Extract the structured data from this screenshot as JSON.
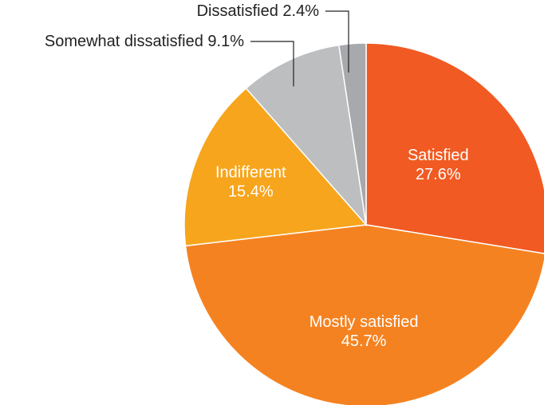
{
  "chart_data": {
    "type": "pie",
    "title": "",
    "slices": [
      {
        "label": "Satisfied",
        "value": 27.6,
        "value_label": "27.6%",
        "color": "#f15a22",
        "label_placement": "inside"
      },
      {
        "label": "Mostly satisfied",
        "value": 45.7,
        "value_label": "45.7%",
        "color": "#f58220",
        "label_placement": "inside"
      },
      {
        "label": "Indifferent",
        "value": 15.4,
        "value_label": "15.4%",
        "color": "#f7a51c",
        "label_placement": "inside"
      },
      {
        "label": "Somewhat dissatisfied",
        "value": 9.1,
        "value_label": "9.1%",
        "color": "#bcbec0",
        "label_placement": "outside"
      },
      {
        "label": "Dissatisfied",
        "value": 2.4,
        "value_label": "2.4%",
        "color": "#a7a9ac",
        "label_placement": "outside"
      }
    ],
    "start_angle": "12 o'clock",
    "direction": "clockwise",
    "legend": "none"
  }
}
